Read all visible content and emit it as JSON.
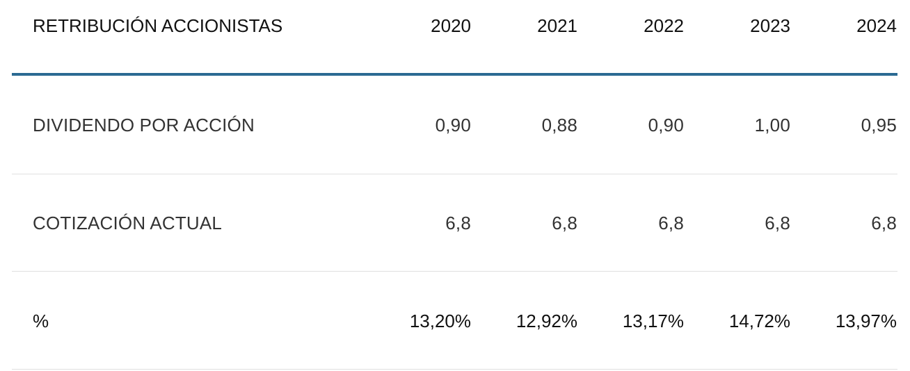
{
  "table": {
    "header": [
      "RETRIBUCIÓN ACCIONISTAS",
      "2020",
      "2021",
      "2022",
      "2023",
      "2024"
    ],
    "rows": [
      [
        "DIVIDENDO POR ACCIÓN",
        "0,90",
        "0,88",
        "0,90",
        "1,00",
        "0,95"
      ],
      [
        "COTIZACIÓN ACTUAL",
        "6,8",
        "6,8",
        "6,8",
        "6,8",
        "6,8"
      ],
      [
        "%",
        "13,20%",
        "12,92%",
        "13,17%",
        "14,72%",
        "13,97%"
      ]
    ]
  }
}
